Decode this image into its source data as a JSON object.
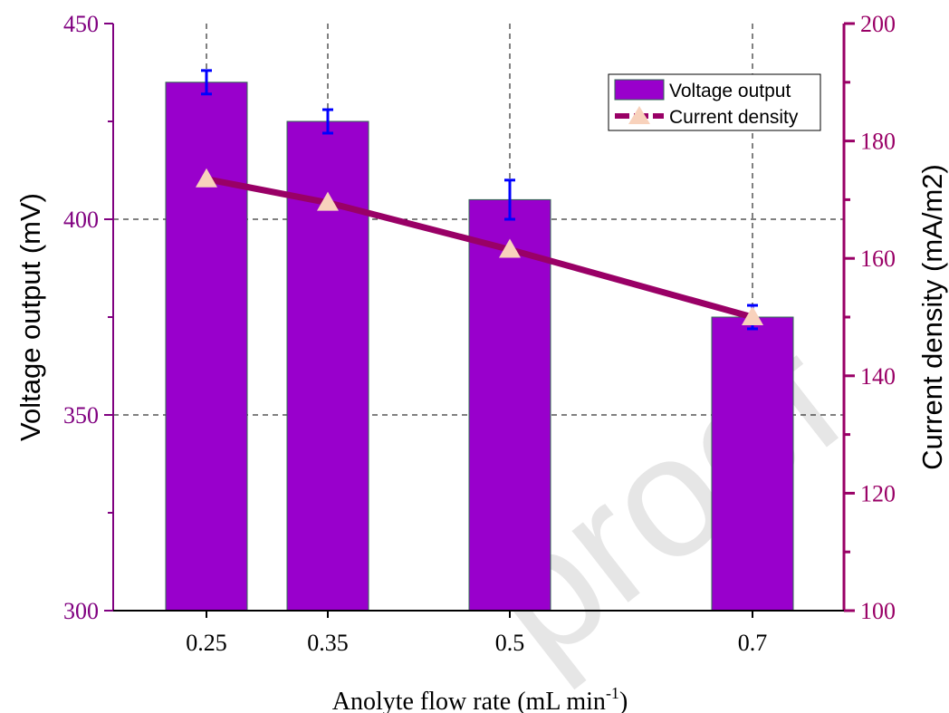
{
  "watermark": "proof",
  "chart_data": {
    "type": "bar",
    "categories": [
      "0.25",
      "0.35",
      "0.5",
      "0.7"
    ],
    "x": [
      0.25,
      0.35,
      0.5,
      0.7
    ],
    "xlabel": "Anolyte flow rate (mL min",
    "xlabel_sup": "-1",
    "xlabel_close": ")",
    "series": [
      {
        "name": "Voltage output",
        "type": "bar",
        "axis": "left",
        "color": "#9900cc",
        "values": [
          435,
          425,
          405,
          375
        ],
        "errors": [
          3,
          3,
          5,
          3
        ]
      },
      {
        "name": "Current density",
        "type": "line",
        "axis": "right",
        "color": "#990066",
        "marker_color": "#f8d2bc",
        "marker": "triangle",
        "values": [
          173.5,
          169.5,
          161.5,
          150
        ]
      }
    ],
    "y_left": {
      "label": "Voltage output (mV)",
      "lim": [
        300,
        450
      ],
      "ticks": [
        "300",
        "350",
        "400",
        "450"
      ],
      "color": "#800080"
    },
    "y_right": {
      "label": "Current density (mA/m2)",
      "lim": [
        100,
        200
      ],
      "ticks": [
        "100",
        "120",
        "140",
        "160",
        "180",
        "200"
      ],
      "color": "#990066"
    },
    "grid": "horizontal dashed at 350 and 400, vertical dashed at each category",
    "legend": "top-right",
    "error_bar_color": "#0000ff"
  }
}
